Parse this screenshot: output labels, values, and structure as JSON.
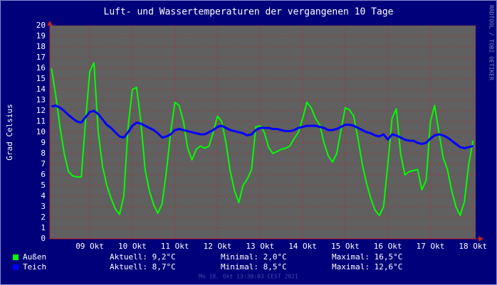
{
  "chart_data": {
    "type": "line",
    "title": "Luft- und Wassertemperaturen der vergangenen 10 Tage",
    "y_label": "Grad Celsius",
    "watermark": "RRDTOOL / TOBI OETIKER",
    "footer": "Mo 18. Okt 13:30:03 CEST 2021",
    "grid": true,
    "xlim": [
      8.5625,
      18.5625
    ],
    "ylim": [
      0,
      20
    ],
    "yticks": [
      0,
      1,
      2,
      3,
      4,
      5,
      6,
      7,
      8,
      9,
      10,
      11,
      12,
      13,
      14,
      15,
      16,
      17,
      18,
      19,
      20
    ],
    "xticks": [
      {
        "value": 9.5,
        "label": "09 Okt"
      },
      {
        "value": 10.5,
        "label": "10 Okt"
      },
      {
        "value": 11.5,
        "label": "11 Okt"
      },
      {
        "value": 12.5,
        "label": "12 Okt"
      },
      {
        "value": 13.5,
        "label": "13 Okt"
      },
      {
        "value": 14.5,
        "label": "14 Okt"
      },
      {
        "value": 15.5,
        "label": "15 Okt"
      },
      {
        "value": 16.5,
        "label": "16 Okt"
      },
      {
        "value": 17.5,
        "label": "17 Okt"
      },
      {
        "value": 18.5,
        "label": "18 Okt"
      }
    ],
    "x": [
      8.6,
      8.7,
      8.8,
      8.9,
      9.0,
      9.1,
      9.2,
      9.3,
      9.4,
      9.5,
      9.6,
      9.7,
      9.8,
      9.9,
      10.0,
      10.1,
      10.2,
      10.3,
      10.4,
      10.5,
      10.6,
      10.7,
      10.8,
      10.9,
      11.0,
      11.1,
      11.2,
      11.3,
      11.4,
      11.5,
      11.6,
      11.7,
      11.8,
      11.9,
      12.0,
      12.1,
      12.2,
      12.3,
      12.4,
      12.5,
      12.6,
      12.7,
      12.8,
      12.9,
      13.0,
      13.1,
      13.2,
      13.3,
      13.4,
      13.5,
      13.6,
      13.7,
      13.8,
      13.9,
      14.0,
      14.1,
      14.2,
      14.3,
      14.4,
      14.5,
      14.6,
      14.7,
      14.8,
      14.9,
      15.0,
      15.1,
      15.2,
      15.3,
      15.4,
      15.5,
      15.6,
      15.7,
      15.8,
      15.9,
      16.0,
      16.1,
      16.2,
      16.3,
      16.4,
      16.5,
      16.6,
      16.7,
      16.8,
      16.9,
      17.0,
      17.1,
      17.2,
      17.3,
      17.4,
      17.5,
      17.6,
      17.7,
      17.8,
      17.9,
      18.0,
      18.1,
      18.2,
      18.3,
      18.4,
      18.5
    ],
    "series": [
      {
        "name": "Außen",
        "color": "#00ff00",
        "stats": [
          "Aktuell: 9,2°C",
          "Minimal: 2,0°C",
          "Maximal: 16,5°C"
        ],
        "values": [
          16,
          13.5,
          10.5,
          8,
          6.3,
          5.9,
          5.8,
          5.8,
          11,
          15.7,
          16.5,
          10,
          6.8,
          5,
          3.8,
          2.8,
          2.3,
          4,
          10.5,
          14,
          14.2,
          11,
          6.5,
          4.5,
          3.2,
          2.4,
          3.3,
          6.3,
          10,
          12.8,
          12.5,
          11,
          8.5,
          7.4,
          8.4,
          8.7,
          8.5,
          8.7,
          10,
          11.5,
          11,
          9,
          6.3,
          4.5,
          3.4,
          5,
          5.6,
          6.5,
          10.5,
          10.6,
          10,
          8.6,
          8,
          8.2,
          8.4,
          8.5,
          8.7,
          9.4,
          10,
          11.3,
          12.8,
          12.3,
          11.3,
          10.7,
          9,
          7.8,
          7.2,
          8,
          10.2,
          12.3,
          12.1,
          11.5,
          9.4,
          7,
          5.2,
          3.8,
          2.7,
          2.2,
          3,
          7,
          11.3,
          12.2,
          8,
          6,
          6.3,
          6.4,
          6.5,
          4.6,
          5.5,
          11,
          12.5,
          10,
          7.6,
          6.5,
          4.5,
          3,
          2.2,
          3.5,
          7,
          9.2
        ]
      },
      {
        "name": "Teich",
        "color": "#0000ff",
        "stats": [
          "Aktuell: 8,7°C",
          "Minimal: 8,5°C",
          "Maximal: 12,6°C"
        ],
        "values": [
          12.4,
          12.5,
          12.3,
          12.0,
          11.6,
          11.3,
          11.0,
          10.9,
          11.4,
          11.9,
          12.0,
          11.7,
          11.2,
          10.7,
          10.4,
          10.0,
          9.6,
          9.5,
          10.0,
          10.6,
          10.9,
          10.8,
          10.6,
          10.4,
          10.2,
          9.9,
          9.5,
          9.6,
          9.8,
          10.2,
          10.3,
          10.2,
          10.1,
          10.0,
          9.9,
          9.8,
          9.8,
          10.0,
          10.2,
          10.5,
          10.6,
          10.4,
          10.2,
          10.1,
          10.0,
          9.9,
          9.7,
          9.8,
          10.2,
          10.4,
          10.4,
          10.4,
          10.3,
          10.3,
          10.2,
          10.1,
          10.1,
          10.2,
          10.4,
          10.5,
          10.6,
          10.6,
          10.6,
          10.5,
          10.4,
          10.2,
          10.2,
          10.3,
          10.5,
          10.7,
          10.7,
          10.6,
          10.4,
          10.2,
          10.0,
          9.9,
          9.7,
          9.6,
          9.8,
          9.3,
          9.8,
          9.7,
          9.5,
          9.3,
          9.2,
          9.2,
          9.0,
          8.9,
          9.0,
          9.4,
          9.7,
          9.8,
          9.7,
          9.5,
          9.2,
          8.9,
          8.6,
          8.5,
          8.6,
          8.7
        ]
      }
    ]
  }
}
